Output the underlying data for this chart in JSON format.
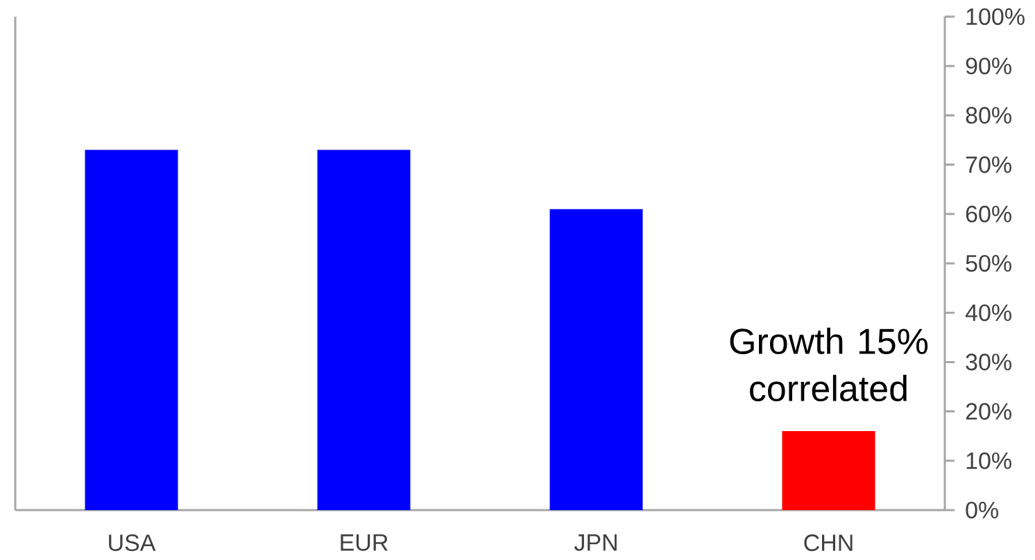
{
  "chart_data": {
    "type": "bar",
    "categories": [
      "USA",
      "EUR",
      "JPN",
      "CHN"
    ],
    "values": [
      73,
      73,
      61,
      16
    ],
    "colors": [
      "#0000ff",
      "#0000ff",
      "#0000ff",
      "#ff0000"
    ],
    "ylim": [
      0,
      100
    ],
    "yticks": [
      {
        "value": 0,
        "label": "0%"
      },
      {
        "value": 10,
        "label": "10%"
      },
      {
        "value": 20,
        "label": "20%"
      },
      {
        "value": 30,
        "label": "30%"
      },
      {
        "value": 40,
        "label": "40%"
      },
      {
        "value": 50,
        "label": "50%"
      },
      {
        "value": 60,
        "label": "60%"
      },
      {
        "value": 70,
        "label": "70%"
      },
      {
        "value": 80,
        "label": "80%"
      },
      {
        "value": 90,
        "label": "90%"
      },
      {
        "value": 100,
        "label": "100%"
      }
    ],
    "annotations": [
      "Growth 15% correlated"
    ]
  }
}
